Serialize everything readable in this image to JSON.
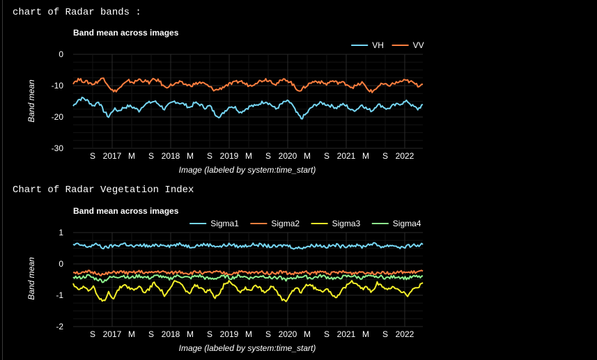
{
  "output_labels": {
    "radar_bands": "chart of Radar bands :",
    "vegetation_index": "Chart of Radar Vegetation Index"
  },
  "chart_data": [
    {
      "type": "line",
      "title": "Band mean across images",
      "xlabel": "Image (labeled by system:time_start)",
      "ylabel": "Band mean",
      "ylim": [
        -30,
        0
      ],
      "yticks": [
        "0",
        "-10",
        "-20",
        "-30"
      ],
      "xtick_labels": [
        "S",
        "2017",
        "M",
        "S",
        "2018",
        "M",
        "S",
        "2019",
        "M",
        "S",
        "2020",
        "M",
        "S",
        "2021",
        "M",
        "S",
        "2022"
      ],
      "legend_position": "top-right",
      "grid": true,
      "x_range": [
        "2016-06",
        "2022-09"
      ],
      "series": [
        {
          "name": "VH",
          "color": "#76d7f5",
          "mean": -16.5,
          "amplitude": 1.6,
          "values": [
            -16.5,
            -14.5,
            -14.0,
            -15.0,
            -16.5,
            -15.0,
            -18.0,
            -20.0,
            -17.5,
            -18.0,
            -17.0,
            -16.5,
            -17.0,
            -18.0,
            -16.0,
            -15.5,
            -15.0,
            -16.0,
            -17.5,
            -16.0,
            -15.0,
            -15.5,
            -16.0,
            -17.0,
            -15.5,
            -16.0,
            -17.0,
            -16.5,
            -19.0,
            -20.0,
            -18.0,
            -16.5,
            -17.0,
            -18.5,
            -17.5,
            -16.5,
            -16.5,
            -15.5,
            -15.0,
            -16.0,
            -17.5,
            -16.0,
            -15.0,
            -15.5,
            -18.5,
            -20.5,
            -19.0,
            -17.0,
            -16.0,
            -15.5,
            -16.0,
            -16.5,
            -17.0,
            -16.0,
            -16.5,
            -18.0,
            -17.5,
            -16.0,
            -17.5,
            -18.0,
            -16.0,
            -16.5,
            -17.5,
            -16.5,
            -16.0,
            -15.5,
            -15.0,
            -16.5,
            -17.5,
            -16.0
          ]
        },
        {
          "name": "VV",
          "color": "#ff7f3f",
          "mean": -9.0,
          "amplitude": 1.5,
          "values": [
            -9.0,
            -8.0,
            -8.5,
            -9.0,
            -9.5,
            -8.5,
            -7.5,
            -10.0,
            -12.0,
            -11.0,
            -9.5,
            -8.5,
            -9.0,
            -8.0,
            -8.5,
            -9.0,
            -8.0,
            -8.5,
            -10.5,
            -10.0,
            -9.5,
            -9.0,
            -9.5,
            -10.0,
            -9.5,
            -9.0,
            -9.5,
            -10.5,
            -11.5,
            -11.0,
            -10.0,
            -9.5,
            -9.0,
            -8.5,
            -9.5,
            -10.0,
            -9.0,
            -8.5,
            -8.0,
            -8.5,
            -9.5,
            -8.5,
            -8.0,
            -9.0,
            -11.0,
            -11.5,
            -10.0,
            -9.0,
            -8.5,
            -9.0,
            -9.5,
            -8.5,
            -9.0,
            -9.0,
            -9.5,
            -10.5,
            -10.0,
            -9.0,
            -11.0,
            -12.0,
            -10.5,
            -9.5,
            -10.0,
            -9.5,
            -9.0,
            -8.5,
            -8.5,
            -9.0,
            -10.0,
            -9.5
          ]
        }
      ]
    },
    {
      "type": "line",
      "title": "Band mean across images",
      "xlabel": "Image (labeled by system:time_start)",
      "ylabel": "Band mean",
      "ylim": [
        -2,
        1
      ],
      "yticks": [
        "1",
        "0",
        "-1",
        "-2"
      ],
      "xtick_labels": [
        "S",
        "2017",
        "M",
        "S",
        "2018",
        "M",
        "S",
        "2019",
        "M",
        "S",
        "2020",
        "M",
        "S",
        "2021",
        "M",
        "S",
        "2022"
      ],
      "legend_position": "top-right",
      "grid": true,
      "x_range": [
        "2016-06",
        "2022-09"
      ],
      "series": [
        {
          "name": "Sigma1",
          "color": "#76d7f5",
          "values": [
            0.6,
            0.62,
            0.58,
            0.55,
            0.6,
            0.62,
            0.5,
            0.55,
            0.58,
            0.6,
            0.65,
            0.6,
            0.55,
            0.58,
            0.6,
            0.55,
            0.58,
            0.6,
            0.62,
            0.58,
            0.6,
            0.62,
            0.6,
            0.55,
            0.58,
            0.6,
            0.62,
            0.6,
            0.58,
            0.55,
            0.6,
            0.62,
            0.58,
            0.55,
            0.58,
            0.6,
            0.62,
            0.6,
            0.58,
            0.56,
            0.55,
            0.58,
            0.6,
            0.55,
            0.5,
            0.52,
            0.55,
            0.58,
            0.6,
            0.58,
            0.55,
            0.58,
            0.6,
            0.55,
            0.58,
            0.6,
            0.58,
            0.55,
            0.6,
            0.65,
            0.6,
            0.55,
            0.58,
            0.6,
            0.55,
            0.52,
            0.56,
            0.6,
            0.58,
            0.62
          ]
        },
        {
          "name": "Sigma2",
          "color": "#ff7f3f",
          "values": [
            -0.25,
            -0.28,
            -0.3,
            -0.25,
            -0.28,
            -0.3,
            -0.35,
            -0.3,
            -0.28,
            -0.25,
            -0.27,
            -0.3,
            -0.28,
            -0.25,
            -0.27,
            -0.3,
            -0.26,
            -0.24,
            -0.27,
            -0.3,
            -0.28,
            -0.25,
            -0.28,
            -0.3,
            -0.27,
            -0.25,
            -0.3,
            -0.28,
            -0.26,
            -0.28,
            -0.3,
            -0.32,
            -0.28,
            -0.26,
            -0.27,
            -0.3,
            -0.28,
            -0.25,
            -0.27,
            -0.3,
            -0.28,
            -0.25,
            -0.28,
            -0.32,
            -0.3,
            -0.28,
            -0.27,
            -0.3,
            -0.28,
            -0.25,
            -0.27,
            -0.3,
            -0.28,
            -0.26,
            -0.28,
            -0.3,
            -0.27,
            -0.25,
            -0.28,
            -0.3,
            -0.27,
            -0.25,
            -0.28,
            -0.3,
            -0.28,
            -0.26,
            -0.28,
            -0.27,
            -0.25,
            -0.23
          ]
        },
        {
          "name": "Sigma3",
          "color": "#f5f029",
          "values": [
            -0.65,
            -0.8,
            -0.7,
            -0.85,
            -0.75,
            -1.1,
            -1.2,
            -0.9,
            -1.1,
            -0.8,
            -0.65,
            -0.75,
            -0.85,
            -0.7,
            -0.9,
            -0.8,
            -0.6,
            -0.75,
            -1.0,
            -0.85,
            -0.55,
            -0.6,
            -0.8,
            -0.95,
            -0.7,
            -0.75,
            -0.9,
            -0.85,
            -1.05,
            -0.9,
            -0.6,
            -0.55,
            -0.7,
            -0.9,
            -0.75,
            -0.85,
            -0.65,
            -0.8,
            -0.9,
            -0.7,
            -0.85,
            -1.1,
            -1.2,
            -0.95,
            -0.75,
            -0.9,
            -0.65,
            -0.7,
            -0.8,
            -0.9,
            -0.75,
            -0.95,
            -1.05,
            -0.85,
            -0.7,
            -0.55,
            -0.6,
            -0.8,
            -0.75,
            -0.9,
            -0.6,
            -0.75,
            -0.85,
            -0.7,
            -0.8,
            -0.9,
            -1.0,
            -0.85,
            -0.75,
            -0.6
          ]
        },
        {
          "name": "Sigma4",
          "color": "#8ef28e",
          "values": [
            -0.4,
            -0.45,
            -0.42,
            -0.38,
            -0.45,
            -0.5,
            -0.55,
            -0.45,
            -0.42,
            -0.4,
            -0.38,
            -0.45,
            -0.42,
            -0.38,
            -0.42,
            -0.45,
            -0.4,
            -0.38,
            -0.45,
            -0.48,
            -0.4,
            -0.38,
            -0.42,
            -0.45,
            -0.4,
            -0.38,
            -0.45,
            -0.48,
            -0.46,
            -0.42,
            -0.4,
            -0.45,
            -0.42,
            -0.38,
            -0.42,
            -0.45,
            -0.42,
            -0.38,
            -0.4,
            -0.45,
            -0.42,
            -0.45,
            -0.5,
            -0.48,
            -0.42,
            -0.4,
            -0.42,
            -0.45,
            -0.42,
            -0.38,
            -0.42,
            -0.45,
            -0.48,
            -0.42,
            -0.4,
            -0.38,
            -0.42,
            -0.45,
            -0.4,
            -0.42,
            -0.38,
            -0.42,
            -0.45,
            -0.42,
            -0.4,
            -0.44,
            -0.46,
            -0.42,
            -0.4,
            -0.38
          ]
        }
      ]
    }
  ]
}
